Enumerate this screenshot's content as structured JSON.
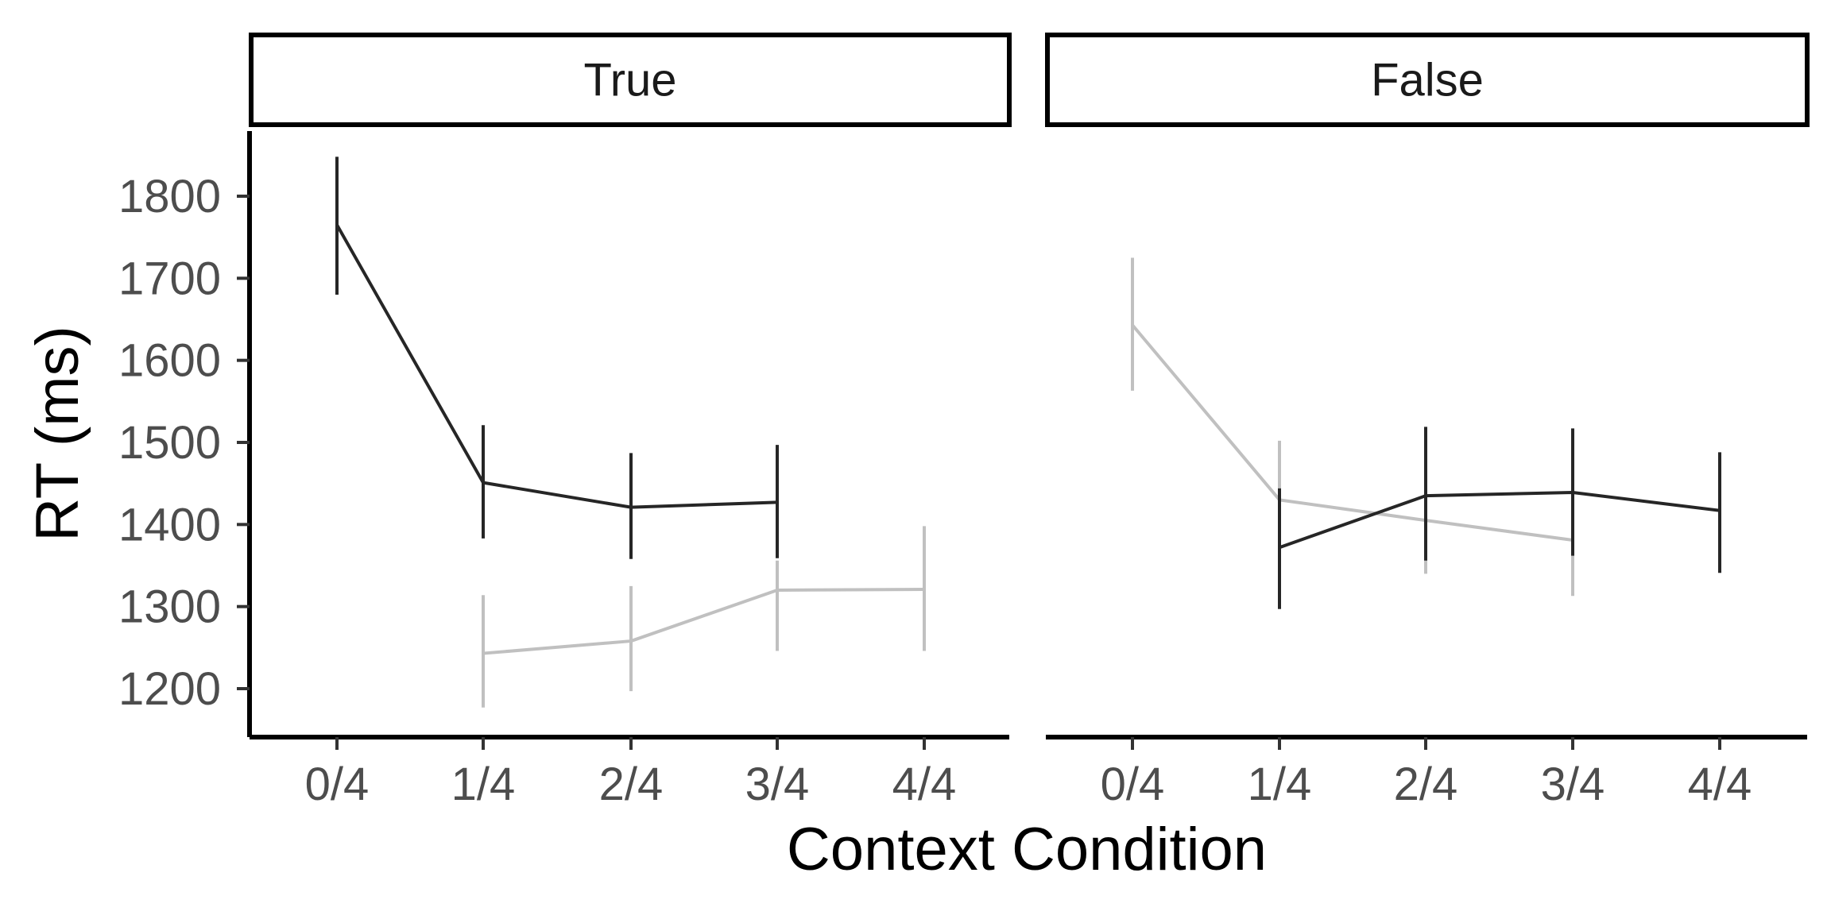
{
  "chart_data": {
    "type": "line",
    "xlabel": "Context Condition",
    "ylabel": "RT (ms)",
    "ylim": [
      1140,
      1880
    ],
    "yticks": [
      1200,
      1300,
      1400,
      1500,
      1600,
      1700,
      1800
    ],
    "ytick_labels": [
      "1200",
      "1300",
      "1400",
      "1500",
      "1600",
      "1700",
      "1800"
    ],
    "categories": [
      "0/4",
      "1/4",
      "2/4",
      "3/4",
      "4/4"
    ],
    "grid": false,
    "legend": "none",
    "colors": {
      "dark": "#262626",
      "light": "#c0c0c0"
    },
    "facets": [
      {
        "label": "True",
        "series": [
          {
            "color": "dark",
            "points": [
              {
                "x": "0/4",
                "y": 1765,
                "lo": 1680,
                "hi": 1848
              },
              {
                "x": "1/4",
                "y": 1451,
                "lo": 1383,
                "hi": 1521
              },
              {
                "x": "2/4",
                "y": 1421,
                "lo": 1358,
                "hi": 1487
              },
              {
                "x": "3/4",
                "y": 1427,
                "lo": 1359,
                "hi": 1497
              }
            ]
          },
          {
            "color": "light",
            "points": [
              {
                "x": "1/4",
                "y": 1243,
                "lo": 1177,
                "hi": 1314
              },
              {
                "x": "2/4",
                "y": 1258,
                "lo": 1197,
                "hi": 1325
              },
              {
                "x": "3/4",
                "y": 1320,
                "lo": 1246,
                "hi": 1356
              },
              {
                "x": "4/4",
                "y": 1321,
                "lo": 1246,
                "hi": 1398
              }
            ]
          }
        ]
      },
      {
        "label": "False",
        "series": [
          {
            "color": "light",
            "points": [
              {
                "x": "0/4",
                "y": 1643,
                "lo": 1563,
                "hi": 1725
              },
              {
                "x": "1/4",
                "y": 1430,
                "lo": 1355,
                "hi": 1502
              },
              {
                "x": "2/4",
                "y": 1405,
                "lo": 1340,
                "hi": 1470
              },
              {
                "x": "3/4",
                "y": 1381,
                "lo": 1313,
                "hi": 1448
              }
            ]
          },
          {
            "color": "dark",
            "points": [
              {
                "x": "1/4",
                "y": 1372,
                "lo": 1297,
                "hi": 1444
              },
              {
                "x": "2/4",
                "y": 1435,
                "lo": 1356,
                "hi": 1519
              },
              {
                "x": "3/4",
                "y": 1439,
                "lo": 1362,
                "hi": 1517
              },
              {
                "x": "4/4",
                "y": 1417,
                "lo": 1341,
                "hi": 1488
              }
            ]
          }
        ]
      }
    ]
  }
}
